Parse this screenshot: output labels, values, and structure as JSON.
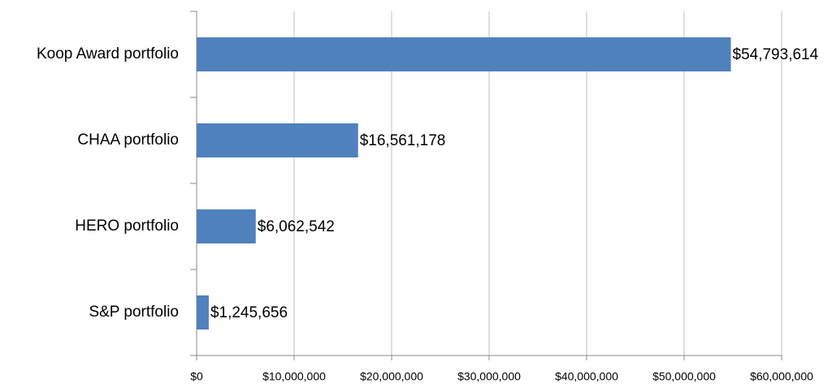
{
  "chart_data": {
    "type": "bar",
    "orientation": "horizontal",
    "categories": [
      "Koop Award portfolio",
      "CHAA portfolio",
      "HERO portfolio",
      "S&P portfolio"
    ],
    "values": [
      54793614,
      16561178,
      6062542,
      1245656
    ],
    "value_labels": [
      "$54,793,614",
      "$16,561,178",
      "$6,062,542",
      "$1,245,656"
    ],
    "color": "#4f81bd",
    "xlim": [
      0,
      60000000
    ],
    "xticks": [
      {
        "value": 0,
        "label": "$0"
      },
      {
        "value": 10000000,
        "label": "$10,000,000"
      },
      {
        "value": 20000000,
        "label": "$20,000,000"
      },
      {
        "value": 30000000,
        "label": "$30,000,000"
      },
      {
        "value": 40000000,
        "label": "$40,000,000"
      },
      {
        "value": 50000000,
        "label": "$50,000,000"
      },
      {
        "value": 60000000,
        "label": "$60,000,000"
      }
    ],
    "grid": true
  }
}
